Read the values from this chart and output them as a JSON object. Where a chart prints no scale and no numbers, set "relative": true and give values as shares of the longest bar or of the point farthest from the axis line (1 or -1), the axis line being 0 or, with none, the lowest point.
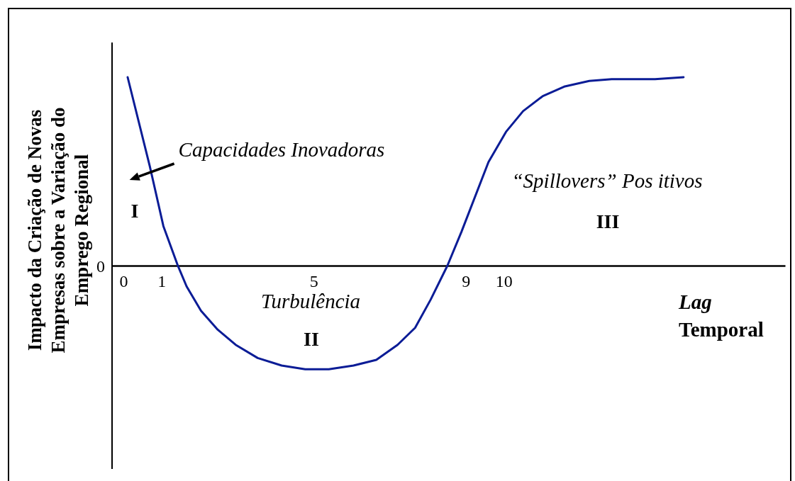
{
  "chart_data": {
    "type": "line",
    "relative": true,
    "x": [
      0.11,
      0.69,
      1.05,
      1.43,
      1.66,
      2.04,
      2.48,
      2.95,
      3.53,
      4.16,
      4.78,
      5.4,
      6.05,
      6.65,
      7.21,
      7.67,
      8.08,
      8.52,
      8.89,
      9.6,
      10.06,
      10.51,
      11.03,
      11.59,
      12.25,
      12.84,
      13.98,
      14.73
    ],
    "values": [
      1.0,
      0.53,
      0.21,
      0,
      -0.11,
      -0.24,
      -0.34,
      -0.42,
      -0.49,
      -0.53,
      -0.55,
      -0.55,
      -0.53,
      -0.5,
      -0.42,
      -0.33,
      -0.18,
      0,
      0.18,
      0.55,
      0.71,
      0.82,
      0.9,
      0.95,
      0.98,
      0.99,
      0.99,
      1.0
    ],
    "color": "#0b1c96",
    "xlim": [
      -0.3,
      17.4
    ],
    "xticks": [
      0,
      1,
      5,
      9,
      10
    ],
    "xlabel": "Lag Temporal",
    "ylabel": "Impacto da Criação de Novas Empresas sobre a Variação do Emprego Regional",
    "annotations": [
      "Capacidades Inovadoras",
      "I",
      "Turbulência",
      "II",
      "“Spillovers” Pos itivos",
      "III",
      "0"
    ]
  }
}
